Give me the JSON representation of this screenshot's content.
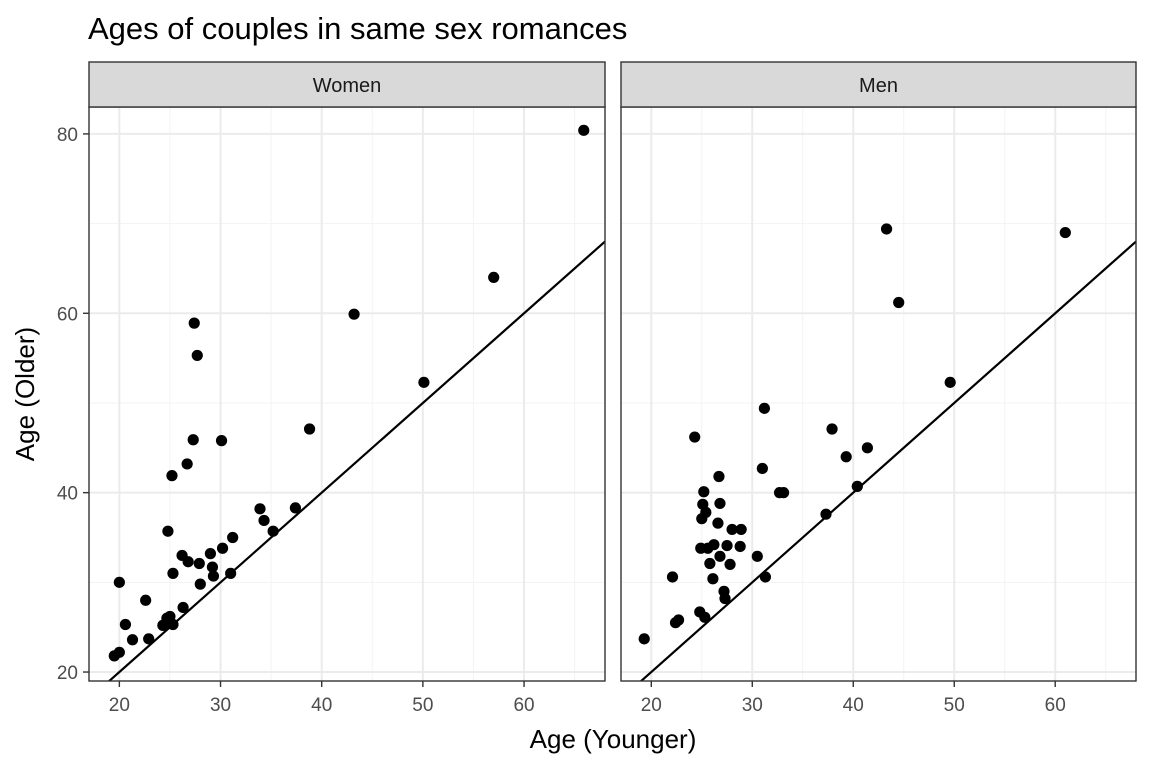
{
  "chart_data": {
    "type": "scatter",
    "title": "Ages of couples in same sex romances",
    "xlabel": "Age (Younger)",
    "ylabel": "Age (Older)",
    "xlim": [
      17,
      68
    ],
    "ylim": [
      19,
      83
    ],
    "x_ticks": [
      20,
      30,
      40,
      50,
      60
    ],
    "y_ticks": [
      20,
      40,
      60,
      80
    ],
    "grid": true,
    "reference_line": {
      "slope": 1,
      "intercept": 0
    },
    "panels": [
      {
        "name": "Women",
        "points": [
          [
            19.5,
            21.8
          ],
          [
            20,
            22.2
          ],
          [
            20,
            30
          ],
          [
            20.6,
            25.3
          ],
          [
            21.3,
            23.6
          ],
          [
            22.6,
            28
          ],
          [
            22.9,
            23.7
          ],
          [
            24.3,
            25.2
          ],
          [
            24.7,
            26
          ],
          [
            25,
            26.2
          ],
          [
            24.8,
            35.7
          ],
          [
            25.2,
            41.9
          ],
          [
            25.3,
            31
          ],
          [
            25.3,
            25.3
          ],
          [
            26.2,
            33
          ],
          [
            26.3,
            27.2
          ],
          [
            26.7,
            43.2
          ],
          [
            26.8,
            32.3
          ],
          [
            27.3,
            45.9
          ],
          [
            27.4,
            58.9
          ],
          [
            27.7,
            55.3
          ],
          [
            28,
            29.8
          ],
          [
            27.9,
            32.1
          ],
          [
            29,
            33.2
          ],
          [
            29.2,
            31.7
          ],
          [
            29.3,
            30.7
          ],
          [
            30.1,
            45.8
          ],
          [
            30.2,
            33.8
          ],
          [
            31,
            31
          ],
          [
            31.2,
            35
          ],
          [
            33.9,
            38.2
          ],
          [
            34.3,
            36.9
          ],
          [
            35.2,
            35.7
          ],
          [
            37.4,
            38.3
          ],
          [
            38.8,
            47.1
          ],
          [
            43.2,
            59.9
          ],
          [
            50.1,
            52.3
          ],
          [
            57,
            64
          ],
          [
            65.9,
            80.4
          ]
        ]
      },
      {
        "name": "Men",
        "points": [
          [
            19.3,
            23.7
          ],
          [
            22.1,
            30.6
          ],
          [
            22.4,
            25.5
          ],
          [
            22.7,
            25.8
          ],
          [
            24.3,
            46.2
          ],
          [
            24.8,
            26.7
          ],
          [
            24.9,
            33.8
          ],
          [
            25,
            37.1
          ],
          [
            25.1,
            38.7
          ],
          [
            25.2,
            40.1
          ],
          [
            25.3,
            26.1
          ],
          [
            25.4,
            37.8
          ],
          [
            25.6,
            33.8
          ],
          [
            25.8,
            32.1
          ],
          [
            26.1,
            30.4
          ],
          [
            26.2,
            34.2
          ],
          [
            26.6,
            36.6
          ],
          [
            26.7,
            41.8
          ],
          [
            26.8,
            38.8
          ],
          [
            26.8,
            32.9
          ],
          [
            27.2,
            29
          ],
          [
            27.3,
            28.2
          ],
          [
            27.5,
            34.1
          ],
          [
            27.8,
            32
          ],
          [
            28,
            35.9
          ],
          [
            28.8,
            34
          ],
          [
            28.9,
            35.9
          ],
          [
            30.5,
            32.9
          ],
          [
            31,
            42.7
          ],
          [
            31.2,
            49.4
          ],
          [
            31.3,
            30.6
          ],
          [
            32.7,
            40
          ],
          [
            33.1,
            40
          ],
          [
            37.3,
            37.6
          ],
          [
            37.9,
            47.1
          ],
          [
            39.3,
            44
          ],
          [
            40.4,
            40.7
          ],
          [
            41.4,
            45
          ],
          [
            43.3,
            69.4
          ],
          [
            44.5,
            61.2
          ],
          [
            49.6,
            52.3
          ],
          [
            61,
            69
          ]
        ]
      }
    ]
  }
}
